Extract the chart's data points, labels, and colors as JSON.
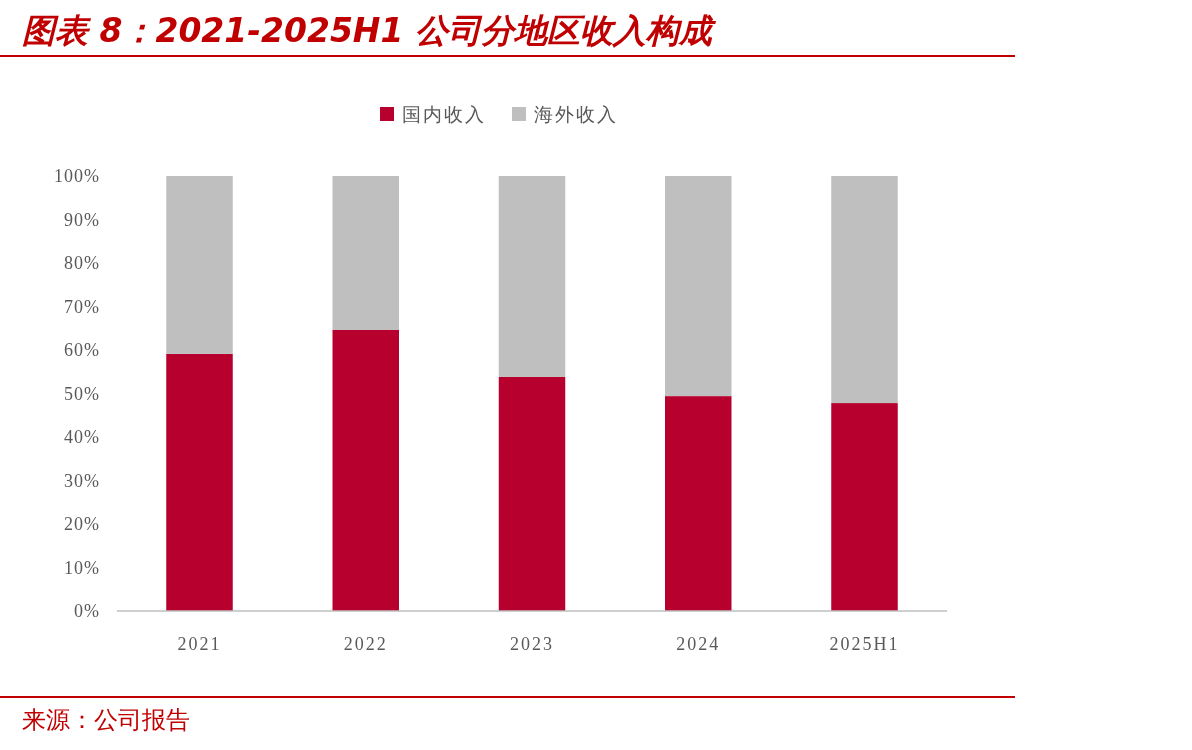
{
  "chart_data": {
    "type": "bar",
    "title": "图表 8：2021-2025H1 公司分地区收入构成",
    "categories": [
      "2021",
      "2022",
      "2023",
      "2024",
      "2025H1"
    ],
    "stacked": true,
    "series": [
      {
        "name": "国内收入",
        "color": "#b8002e",
        "values": [
          59.1,
          64.6,
          53.8,
          49.4,
          47.8
        ]
      },
      {
        "name": "海外收入",
        "color": "#bfbfbf",
        "values": [
          40.9,
          35.4,
          46.2,
          50.6,
          52.2
        ]
      }
    ],
    "ylim": [
      0,
      100
    ],
    "yticks": [
      {
        "value": 0,
        "label": "0%"
      },
      {
        "value": 10,
        "label": "10%"
      },
      {
        "value": 20,
        "label": "20%"
      },
      {
        "value": 30,
        "label": "30%"
      },
      {
        "value": 40,
        "label": "40%"
      },
      {
        "value": 50,
        "label": "50%"
      },
      {
        "value": 60,
        "label": "60%"
      },
      {
        "value": 70,
        "label": "70%"
      },
      {
        "value": 80,
        "label": "80%"
      },
      {
        "value": 90,
        "label": "90%"
      },
      {
        "value": 100,
        "label": "100%"
      }
    ],
    "grid": false,
    "legend": "top",
    "annotations": [
      "来源：公司报告"
    ]
  }
}
